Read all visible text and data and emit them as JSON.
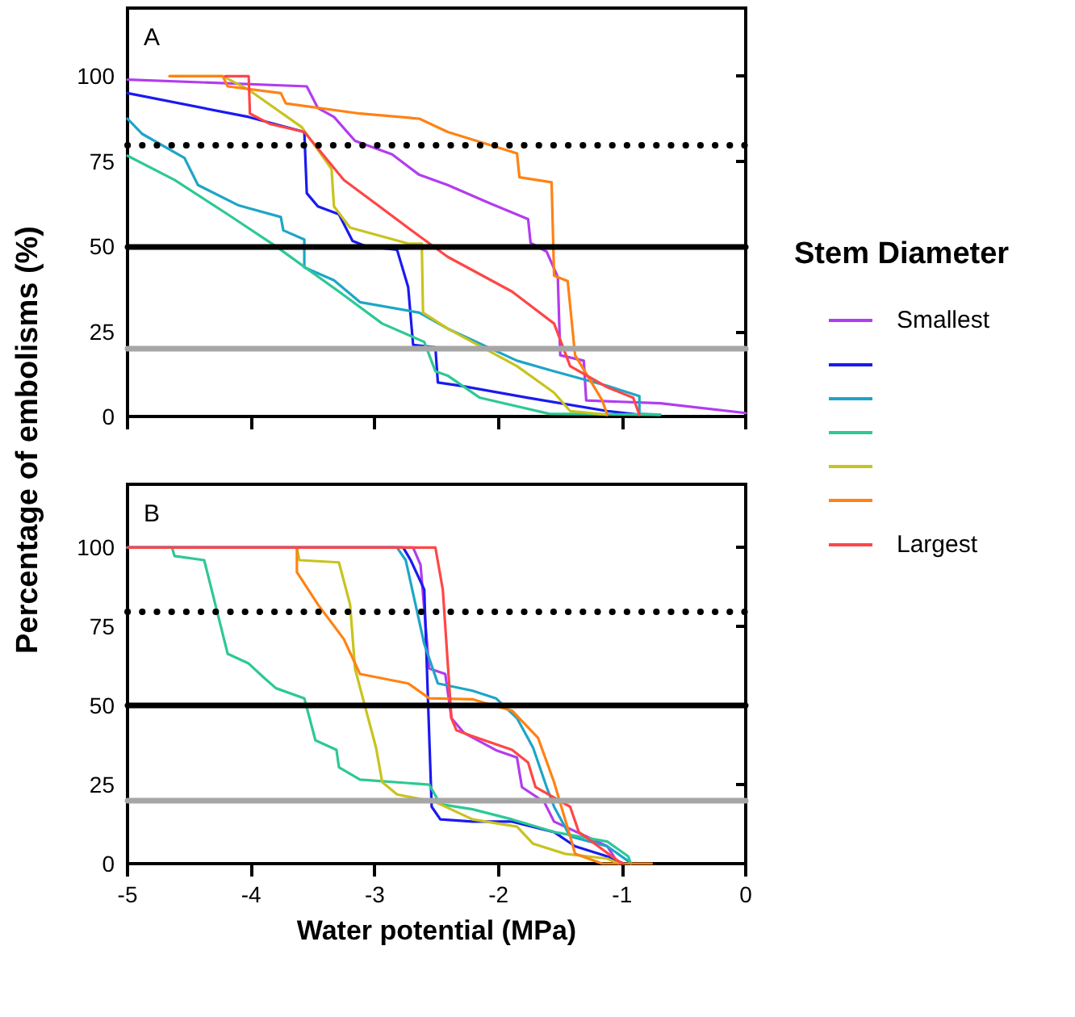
{
  "chart_data": [
    {
      "type": "line",
      "title": "A",
      "ylabel": "Percentage of embolisms (%)",
      "legend_title": "Stem Diameter",
      "legend": "right",
      "marker": "none",
      "line_style": "solid",
      "tick_labels": "y",
      "xlim": [
        -5,
        0
      ],
      "xticks": [
        -5,
        -4,
        -3,
        -2,
        -1,
        0
      ],
      "ylim": [
        0,
        120
      ],
      "yticks": [
        0,
        25,
        50,
        75,
        100
      ],
      "ref_lines": [
        {
          "axis": "y",
          "value": 80,
          "color": "#000000",
          "line_style": "dotted"
        },
        {
          "axis": "y",
          "value": 50,
          "color": "#000000",
          "line_style": "solid"
        },
        {
          "axis": "y",
          "value": 20,
          "color": "#a6a6a6",
          "line_style": "solid"
        }
      ],
      "series": [
        {
          "name": "Smallest",
          "color": "#b23cf0",
          "x": [
            -5,
            -3.55,
            -3.46,
            -3.33,
            -3.16,
            -2.86,
            -2.64,
            -2.41,
            -2.06,
            -1.76,
            -1.74,
            -1.61,
            -1.52,
            -1.5,
            -1.31,
            -1.29,
            -0.69,
            0
          ],
          "values": [
            99,
            97,
            90.6,
            88,
            81,
            77,
            71,
            68,
            62.5,
            58,
            51,
            48.4,
            41,
            18,
            16.4,
            4.7,
            3.9,
            1
          ]
        },
        {
          "color": "#1a1af0",
          "x": [
            -5,
            -4.02,
            -3.57,
            -3.55,
            -3.46,
            -3.29,
            -3.18,
            -3.07,
            -2.82,
            -2.73,
            -2.69,
            -2.51,
            -2.49,
            -2.3,
            -1.76,
            -1.12,
            -0.86
          ],
          "values": [
            95,
            88,
            83.6,
            65.6,
            61.7,
            59.4,
            51.6,
            50,
            49,
            38,
            21,
            20.3,
            10,
            9,
            5.5,
            1.6,
            0.5
          ]
        },
        {
          "color": "#1ea5c8",
          "x": [
            -5,
            -4.88,
            -4.54,
            -4.43,
            -4.1,
            -3.76,
            -3.74,
            -3.57,
            -3.57,
            -3.33,
            -3.12,
            -2.64,
            -2.41,
            -1.85,
            -1.55,
            -1.12,
            -0.86,
            -0.86,
            -0.69
          ],
          "values": [
            87.5,
            83,
            76,
            68,
            62,
            58.6,
            54.7,
            52,
            43.8,
            40,
            33.6,
            30.5,
            25.8,
            16.4,
            13.3,
            9,
            6,
            0.8,
            0.5
          ]
        },
        {
          "color": "#2dc896",
          "x": [
            -5,
            -4.62,
            -4.19,
            -3.8,
            -3.59,
            -3.29,
            -2.94,
            -2.6,
            -2.51,
            -2.41,
            -2.15,
            -1.59,
            -0.7
          ],
          "values": [
            76.6,
            69.5,
            59.4,
            50,
            44.5,
            36.7,
            27.3,
            21.9,
            13.3,
            12,
            5.5,
            0.8,
            0.5
          ]
        },
        {
          "color": "#c8c31e",
          "x": [
            -4.66,
            -4.23,
            -4.02,
            -3.59,
            -3.35,
            -3.33,
            -3.2,
            -2.73,
            -2.62,
            -2.61,
            -2.41,
            -1.85,
            -1.55,
            -1.42,
            -1.12
          ],
          "values": [
            100,
            100,
            96,
            85,
            72.7,
            61.7,
            55.5,
            50.8,
            50.8,
            30.5,
            25.8,
            14.8,
            7,
            1.6,
            0.5
          ]
        },
        {
          "color": "#ff8214",
          "x": [
            -4.66,
            -4.23,
            -4.19,
            -3.76,
            -3.72,
            -3.12,
            -2.64,
            -2.41,
            -1.85,
            -1.83,
            -1.57,
            -1.55,
            -1.44,
            -1.38,
            -1.16,
            -1.12
          ],
          "values": [
            100,
            100,
            97,
            95,
            92,
            89,
            87.5,
            83.6,
            77.3,
            70.3,
            68.8,
            41.4,
            39.8,
            18,
            4.7,
            0.5
          ]
        },
        {
          "name": "Largest",
          "color": "#ff4646",
          "x": [
            -4.21,
            -4.02,
            -4.01,
            -3.85,
            -3.57,
            -3.25,
            -2.64,
            -2.41,
            -1.89,
            -1.55,
            -1.42,
            -1.12,
            -0.91,
            -0.86
          ],
          "values": [
            100,
            100,
            89,
            86,
            83.6,
            69.5,
            53,
            46.9,
            36.7,
            27.3,
            14.8,
            8.6,
            5.5,
            0.5
          ]
        }
      ]
    },
    {
      "type": "line",
      "title": "B",
      "xlabel": "Water potential (MPa)",
      "marker": "none",
      "line_style": "solid",
      "xlim": [
        -5,
        0
      ],
      "xticks": [
        -5,
        -4,
        -3,
        -2,
        -1,
        0
      ],
      "ylim": [
        0,
        120
      ],
      "yticks": [
        0,
        25,
        50,
        75,
        100
      ],
      "ref_lines": [
        {
          "axis": "y",
          "value": 80,
          "color": "#000000",
          "line_style": "dotted"
        },
        {
          "axis": "y",
          "value": 50,
          "color": "#000000",
          "line_style": "solid"
        },
        {
          "axis": "y",
          "value": 20,
          "color": "#a6a6a6",
          "line_style": "solid"
        }
      ],
      "series": [
        {
          "color": "#b23cf0",
          "x": [
            -5,
            -2.69,
            -2.63,
            -2.56,
            -2.43,
            -2.38,
            -2.28,
            -2.02,
            -1.85,
            -1.81,
            -1.63,
            -1.55,
            -1.29,
            -1.12,
            -1.03
          ],
          "values": [
            100,
            100,
            94.5,
            61.7,
            60,
            46,
            41.4,
            35.9,
            33.6,
            24.2,
            19.5,
            13.3,
            8.6,
            5.5,
            0
          ]
        },
        {
          "color": "#1a1af0",
          "x": [
            -5,
            -2.77,
            -2.71,
            -2.6,
            -2.57,
            -2.54,
            -2.47,
            -2.21,
            -1.89,
            -1.55,
            -1.38,
            -1.12,
            -0.99
          ],
          "values": [
            100,
            100,
            96,
            86.7,
            52,
            18,
            14,
            13.3,
            13.3,
            10,
            5.5,
            2.3,
            0
          ]
        },
        {
          "color": "#1ea5c8",
          "x": [
            -5,
            -2.82,
            -2.75,
            -2.6,
            -2.49,
            -2.21,
            -2.02,
            -1.85,
            -1.72,
            -1.61,
            -1.55,
            -1.42,
            -1.12,
            -0.95,
            -0.93
          ],
          "values": [
            100,
            100,
            96,
            69.5,
            57,
            54.7,
            52.3,
            46,
            36.7,
            24.2,
            18,
            8.6,
            5.5,
            0.8,
            0
          ]
        },
        {
          "color": "#2dc896",
          "x": [
            -5,
            -4.64,
            -4.62,
            -4.38,
            -4.32,
            -4.19,
            -4.02,
            -3.89,
            -3.8,
            -3.57,
            -3.48,
            -3.31,
            -3.29,
            -3.12,
            -2.56,
            -2.47,
            -2.21,
            -1.89,
            -1.55,
            -1.12,
            -0.95,
            -0.93
          ],
          "values": [
            100,
            100,
            97.3,
            96,
            86.7,
            66.4,
            63.3,
            58.6,
            55.5,
            52.3,
            39,
            36,
            30.5,
            26.6,
            25,
            18.8,
            17.2,
            14,
            10,
            7,
            2.3,
            0
          ]
        },
        {
          "color": "#c8c31e",
          "x": [
            -3.63,
            -3.61,
            -3.29,
            -3.2,
            -3.16,
            -3.07,
            -2.99,
            -2.94,
            -2.82,
            -2.51,
            -2.21,
            -1.85,
            -1.72,
            -1.46,
            -1.12,
            -1.03
          ],
          "values": [
            100,
            96,
            95.3,
            82,
            61.7,
            48.4,
            36.7,
            25.8,
            21.9,
            19.5,
            14,
            11.7,
            6.3,
            3.1,
            1.6,
            0
          ]
        },
        {
          "color": "#ff8214",
          "x": [
            -3.63,
            -3.63,
            -3.46,
            -3.25,
            -3.12,
            -2.73,
            -2.56,
            -2.21,
            -2.11,
            -1.89,
            -1.68,
            -1.55,
            -1.42,
            -1.38,
            -1.16,
            -0.76
          ],
          "values": [
            100,
            92.2,
            82,
            71,
            60,
            57,
            52.3,
            52,
            50.8,
            48.4,
            39.8,
            25.8,
            8.6,
            3.1,
            0,
            0
          ]
        },
        {
          "color": "#ff4646",
          "x": [
            -5,
            -2.51,
            -2.45,
            -2.38,
            -2.34,
            -2.23,
            -1.89,
            -1.76,
            -1.7,
            -1.42,
            -1.35,
            -1.03,
            -0.99
          ],
          "values": [
            100,
            100,
            86.7,
            46,
            42.2,
            40.6,
            36,
            32,
            24.2,
            18,
            10,
            0.8,
            0
          ]
        }
      ]
    }
  ]
}
